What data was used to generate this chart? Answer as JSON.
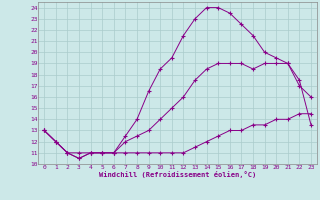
{
  "xlabel": "Windchill (Refroidissement éolien,°C)",
  "background_color": "#cce8e8",
  "line_color": "#880088",
  "grid_color": "#aacccc",
  "xlim": [
    -0.5,
    23.5
  ],
  "ylim": [
    10,
    24.5
  ],
  "xticks": [
    0,
    1,
    2,
    3,
    4,
    5,
    6,
    7,
    8,
    9,
    10,
    11,
    12,
    13,
    14,
    15,
    16,
    17,
    18,
    19,
    20,
    21,
    22,
    23
  ],
  "yticks": [
    10,
    11,
    12,
    13,
    14,
    15,
    16,
    17,
    18,
    19,
    20,
    21,
    22,
    23,
    24
  ],
  "line1_x": [
    0,
    1,
    2,
    3,
    4,
    5,
    6,
    7,
    8,
    9,
    10,
    11,
    12,
    13,
    14,
    15,
    16,
    17,
    18,
    19,
    20,
    21,
    22,
    23
  ],
  "line1_y": [
    13,
    12,
    11,
    10.5,
    11,
    11,
    11,
    11,
    11,
    11,
    11,
    11,
    11,
    11.5,
    12,
    12.5,
    13,
    13,
    13.5,
    13.5,
    14,
    14,
    14.5,
    14.5
  ],
  "line2_x": [
    0,
    1,
    2,
    3,
    4,
    5,
    6,
    7,
    8,
    9,
    10,
    11,
    12,
    13,
    14,
    15,
    16,
    17,
    18,
    19,
    20,
    21,
    22,
    23
  ],
  "line2_y": [
    13,
    12,
    11,
    11,
    11,
    11,
    11,
    12,
    12.5,
    13,
    14,
    15,
    16,
    17.5,
    18.5,
    19,
    19,
    19,
    18.5,
    19,
    19,
    19,
    17.5,
    13.5
  ],
  "line3_x": [
    0,
    1,
    2,
    3,
    4,
    5,
    6,
    7,
    8,
    9,
    10,
    11,
    12,
    13,
    14,
    15,
    16,
    17,
    18,
    19,
    20,
    21,
    22,
    23
  ],
  "line3_y": [
    13,
    12,
    11,
    10.5,
    11,
    11,
    11,
    12.5,
    14,
    16.5,
    18.5,
    19.5,
    21.5,
    23,
    24,
    24,
    23.5,
    22.5,
    21.5,
    20,
    19.5,
    19,
    17,
    16
  ]
}
